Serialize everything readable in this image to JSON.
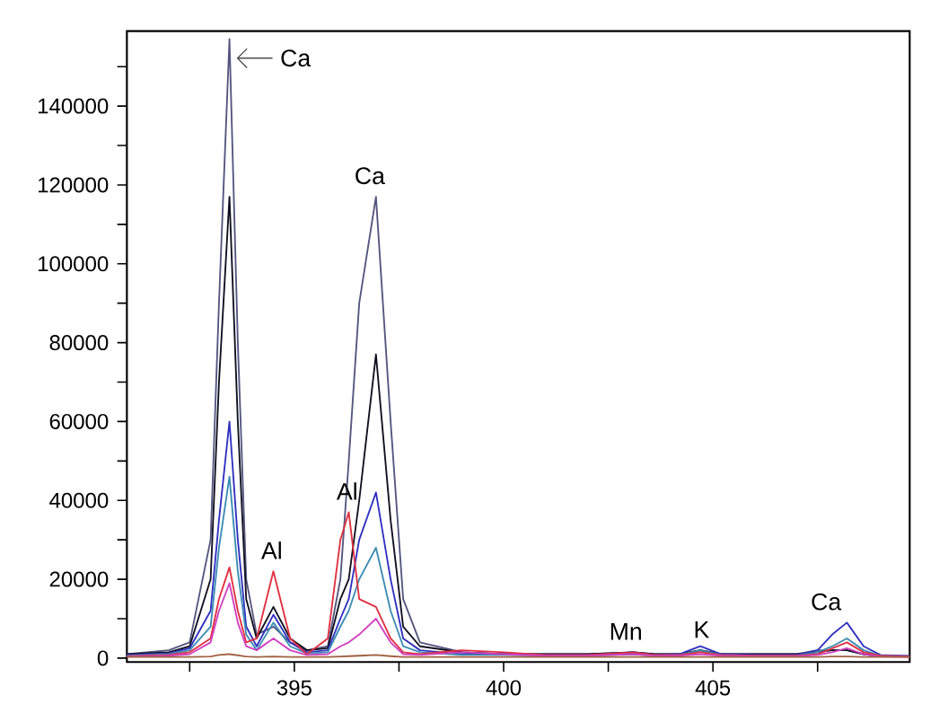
{
  "chart_data": {
    "type": "line",
    "x": [
      391,
      392,
      392.5,
      393,
      393.2,
      393.45,
      393.65,
      393.85,
      394.1,
      394.5,
      394.9,
      395.3,
      395.8,
      396.1,
      396.3,
      396.55,
      396.95,
      397.3,
      397.6,
      398,
      399,
      400,
      401,
      402,
      403.1,
      403.6,
      404.2,
      404.7,
      405.2,
      406,
      407,
      407.5,
      407.85,
      408.2,
      408.6,
      409,
      409.7
    ],
    "series": [
      {
        "color": "#55557f",
        "values": [
          1000,
          2000,
          4000,
          30000,
          90000,
          157000,
          80000,
          20000,
          6000,
          8000,
          4000,
          2000,
          3000,
          20000,
          50000,
          90000,
          117000,
          60000,
          15000,
          4000,
          1500,
          1000,
          1000,
          1000,
          1500,
          1000,
          1000,
          2000,
          1000,
          1000,
          1000,
          2000,
          2000,
          2000,
          1000,
          500,
          500
        ]
      },
      {
        "color": "#101020",
        "values": [
          1000,
          1500,
          3000,
          20000,
          70000,
          117000,
          60000,
          15000,
          5000,
          13000,
          5000,
          2000,
          2500,
          15000,
          20000,
          40000,
          77000,
          35000,
          8000,
          3000,
          1500,
          1000,
          1000,
          1000,
          1500,
          1000,
          1000,
          2000,
          1000,
          1000,
          1000,
          1500,
          2000,
          2000,
          1000,
          500,
          500
        ]
      },
      {
        "color": "#3030c0",
        "values": [
          800,
          1200,
          2500,
          12000,
          35000,
          60000,
          30000,
          8000,
          3000,
          11000,
          4000,
          1500,
          2000,
          10000,
          15000,
          30000,
          42000,
          20000,
          5000,
          2000,
          1000,
          1000,
          800,
          800,
          1500,
          800,
          1000,
          3000,
          1000,
          800,
          800,
          2000,
          6000,
          9000,
          3000,
          800,
          500
        ]
      },
      {
        "color": "#3c8cb4",
        "values": [
          600,
          1000,
          2000,
          8000,
          28000,
          46000,
          22000,
          6000,
          2000,
          9000,
          3000,
          1200,
          1500,
          8000,
          12000,
          20000,
          28000,
          12000,
          3000,
          1500,
          800,
          800,
          600,
          600,
          1000,
          600,
          800,
          2000,
          800,
          600,
          600,
          1500,
          3000,
          5000,
          2000,
          600,
          400
        ]
      },
      {
        "color": "#e03040",
        "values": [
          500,
          800,
          1500,
          5000,
          15000,
          23000,
          12000,
          4000,
          5000,
          22000,
          5000,
          1000,
          5000,
          30000,
          37000,
          15000,
          13000,
          5000,
          1500,
          1000,
          2000,
          1500,
          800,
          800,
          1500,
          800,
          800,
          1500,
          800,
          600,
          600,
          1000,
          2500,
          4000,
          1500,
          600,
          400
        ]
      },
      {
        "color": "#d040c0",
        "values": [
          400,
          600,
          1000,
          4000,
          12000,
          19000,
          9000,
          3000,
          2000,
          5000,
          2000,
          800,
          1000,
          3000,
          4000,
          6000,
          10000,
          4000,
          1000,
          800,
          1500,
          1000,
          600,
          600,
          1000,
          600,
          600,
          1000,
          600,
          500,
          500,
          800,
          1500,
          2500,
          1000,
          400,
          300
        ]
      },
      {
        "color": "#a06040",
        "values": [
          300,
          300,
          300,
          400,
          800,
          1000,
          700,
          400,
          300,
          400,
          300,
          300,
          300,
          400,
          500,
          600,
          800,
          500,
          300,
          300,
          300,
          300,
          300,
          300,
          300,
          300,
          300,
          300,
          300,
          300,
          300,
          300,
          400,
          400,
          300,
          300,
          300
        ]
      }
    ],
    "xlim": [
      391,
      409.7
    ],
    "ylim": [
      -1000,
      159000
    ],
    "xticks": [
      {
        "value": 392.5,
        "label": null
      },
      395,
      {
        "value": 397.5,
        "label": null
      },
      400,
      {
        "value": 402.5,
        "label": null
      },
      405,
      {
        "value": 407.5,
        "label": null
      }
    ],
    "yticks": [
      0,
      {
        "value": 10000,
        "label": null
      },
      20000,
      {
        "value": 30000,
        "label": null
      },
      40000,
      {
        "value": 50000,
        "label": null
      },
      60000,
      {
        "value": 70000,
        "label": null
      },
      80000,
      {
        "value": 90000,
        "label": null
      },
      100000,
      {
        "value": 110000,
        "label": null
      },
      120000,
      {
        "value": 130000,
        "label": null
      },
      140000,
      {
        "value": 150000,
        "label": null
      }
    ],
    "annotations": [
      {
        "text": "Ca",
        "x": 393.45,
        "y": 157000
      },
      {
        "text": "Ca",
        "x": 396.95,
        "y": 117000
      },
      {
        "text": "Al",
        "x": 394.5,
        "y": 22000
      },
      {
        "text": "Al",
        "x": 396.3,
        "y": 37000
      },
      {
        "text": "Mn",
        "x": 403.1,
        "y": 1500
      },
      {
        "text": "K",
        "x": 404.7,
        "y": 2000
      },
      {
        "text": "Ca",
        "x": 407.85,
        "y": 9000
      }
    ],
    "grid": false,
    "marker": "none",
    "line_style": "solid"
  }
}
